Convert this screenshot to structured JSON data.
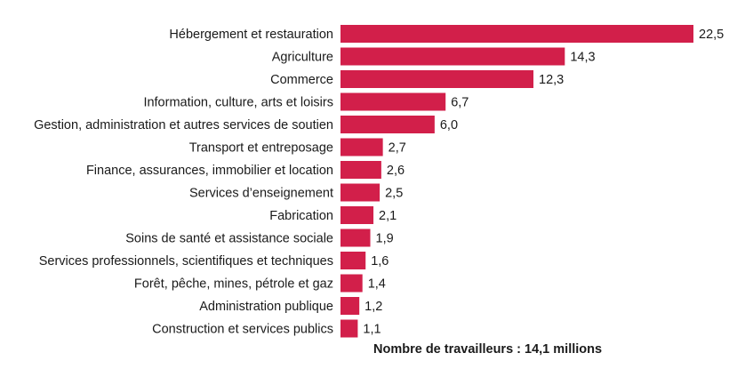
{
  "chart_data": {
    "type": "bar",
    "orientation": "horizontal",
    "categories": [
      "Hébergement et restauration",
      "Agriculture",
      "Commerce",
      "Information, culture, arts et loisirs",
      "Gestion, administration et autres services de soutien",
      "Transport et entreposage",
      "Finance, assurances,  immobilier et location",
      "Services d’enseignement",
      "Fabrication",
      "Soins de santé et assistance sociale",
      "Services professionnels, scientifiques et techniques",
      "Forêt, pêche, mines, pétrole et gaz",
      "Administration publique",
      "Construction et services publics"
    ],
    "values": [
      22.5,
      14.3,
      12.3,
      6.7,
      6.0,
      2.7,
      2.6,
      2.5,
      2.1,
      1.9,
      1.6,
      1.4,
      1.2,
      1.1
    ],
    "value_labels": [
      "22,5",
      "14,3",
      "12,3",
      "6,7",
      "6,0",
      "2,7",
      "2,6",
      "2,5",
      "2,1",
      "1,9",
      "1,6",
      "1,4",
      "1,2",
      "1,1"
    ],
    "bar_color": "#d21f4a",
    "grid": false,
    "legend": "none",
    "note": "Nombre de travailleurs : 14,1 millions"
  }
}
